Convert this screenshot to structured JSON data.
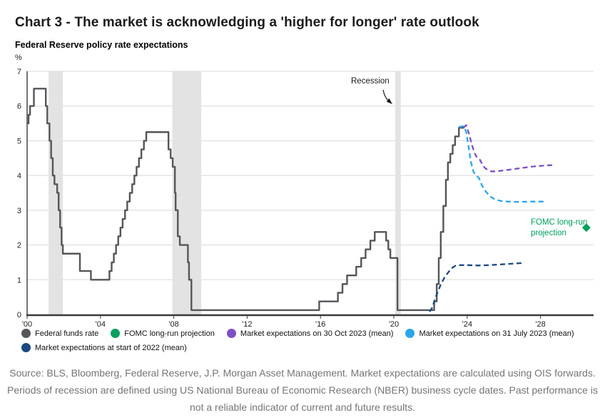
{
  "header": {
    "title": "Chart 3 - The market is acknowledging a 'higher for longer' rate outlook"
  },
  "chart_data": {
    "type": "line",
    "title": "Federal Reserve policy rate expectations",
    "ylabel": "%",
    "ylim": [
      0,
      7
    ],
    "xlim": [
      2000,
      2030.9
    ],
    "grid": true,
    "y_ticks": [
      0,
      1,
      2,
      3,
      4,
      5,
      6,
      7
    ],
    "x_ticks": [
      {
        "year": 2000,
        "label": "'00"
      },
      {
        "year": 2004,
        "label": "'04"
      },
      {
        "year": 2008,
        "label": "'08"
      },
      {
        "year": 2012,
        "label": "'12"
      },
      {
        "year": 2016,
        "label": "'16"
      },
      {
        "year": 2020,
        "label": "'20"
      },
      {
        "year": 2024,
        "label": "'24"
      },
      {
        "year": 2028,
        "label": "'28"
      }
    ],
    "colors": {
      "grid": "#d9d9d9",
      "band": "#e3e3e3",
      "axis": "#3a3a3a",
      "annotation": "#1a1a1a"
    },
    "recession_bands": [
      {
        "start": 2001.17,
        "end": 2001.95
      },
      {
        "start": 2007.92,
        "end": 2009.5
      },
      {
        "start": 2020.08,
        "end": 2020.38
      }
    ],
    "annotation": {
      "text": "Recession"
    },
    "fomc_label": "FOMC long-run projection",
    "series": [
      {
        "name": "Federal funds rate",
        "color": "#54565a",
        "style": "solid",
        "interp": "step",
        "width": 2.4,
        "points": [
          [
            2000.0,
            5.5
          ],
          [
            2000.08,
            5.75
          ],
          [
            2000.16,
            6.0
          ],
          [
            2000.37,
            6.5
          ],
          [
            2001.02,
            6.0
          ],
          [
            2001.1,
            5.5
          ],
          [
            2001.22,
            5.0
          ],
          [
            2001.31,
            4.5
          ],
          [
            2001.4,
            4.0
          ],
          [
            2001.49,
            3.75
          ],
          [
            2001.64,
            3.5
          ],
          [
            2001.72,
            3.0
          ],
          [
            2001.8,
            2.5
          ],
          [
            2001.88,
            2.0
          ],
          [
            2001.95,
            1.75
          ],
          [
            2002.88,
            1.25
          ],
          [
            2003.48,
            1.0
          ],
          [
            2004.49,
            1.25
          ],
          [
            2004.61,
            1.5
          ],
          [
            2004.73,
            1.75
          ],
          [
            2004.85,
            2.0
          ],
          [
            2004.97,
            2.25
          ],
          [
            2005.09,
            2.5
          ],
          [
            2005.21,
            2.75
          ],
          [
            2005.34,
            3.0
          ],
          [
            2005.46,
            3.25
          ],
          [
            2005.6,
            3.5
          ],
          [
            2005.73,
            3.75
          ],
          [
            2005.85,
            4.0
          ],
          [
            2005.97,
            4.25
          ],
          [
            2006.1,
            4.5
          ],
          [
            2006.23,
            4.75
          ],
          [
            2006.37,
            5.0
          ],
          [
            2006.5,
            5.25
          ],
          [
            2007.71,
            4.75
          ],
          [
            2007.83,
            4.5
          ],
          [
            2007.94,
            4.25
          ],
          [
            2008.06,
            3.5
          ],
          [
            2008.1,
            3.0
          ],
          [
            2008.22,
            2.25
          ],
          [
            2008.33,
            2.0
          ],
          [
            2008.77,
            1.5
          ],
          [
            2008.83,
            1.0
          ],
          [
            2008.96,
            0.125
          ],
          [
            2015.93,
            0.375
          ],
          [
            2016.95,
            0.625
          ],
          [
            2017.2,
            0.875
          ],
          [
            2017.45,
            1.125
          ],
          [
            2017.95,
            1.375
          ],
          [
            2018.22,
            1.625
          ],
          [
            2018.46,
            1.875
          ],
          [
            2018.72,
            2.125
          ],
          [
            2018.96,
            2.375
          ],
          [
            2019.58,
            2.125
          ],
          [
            2019.7,
            1.875
          ],
          [
            2019.81,
            1.625
          ],
          [
            2020.2,
            0.125
          ],
          [
            2022.2,
            0.375
          ],
          [
            2022.34,
            0.875
          ],
          [
            2022.45,
            1.625
          ],
          [
            2022.56,
            2.375
          ],
          [
            2022.7,
            3.125
          ],
          [
            2022.84,
            3.875
          ],
          [
            2022.95,
            4.375
          ],
          [
            2023.08,
            4.625
          ],
          [
            2023.21,
            4.875
          ],
          [
            2023.34,
            5.125
          ],
          [
            2023.55,
            5.375
          ],
          [
            2023.85,
            5.375
          ]
        ]
      },
      {
        "name": "Market expectations on 30 Oct 2023 (mean)",
        "color": "#7d4fc4",
        "style": "dashed",
        "interp": "linear",
        "width": 2.3,
        "points": [
          [
            2023.8,
            5.38
          ],
          [
            2023.95,
            5.45
          ],
          [
            2024.1,
            5.2
          ],
          [
            2024.25,
            4.9
          ],
          [
            2024.4,
            4.65
          ],
          [
            2024.55,
            4.5
          ],
          [
            2024.7,
            4.45
          ],
          [
            2024.85,
            4.3
          ],
          [
            2025.0,
            4.2
          ],
          [
            2025.3,
            4.12
          ],
          [
            2025.6,
            4.12
          ],
          [
            2026.0,
            4.15
          ],
          [
            2026.5,
            4.18
          ],
          [
            2027.0,
            4.22
          ],
          [
            2027.6,
            4.26
          ],
          [
            2028.3,
            4.29
          ],
          [
            2028.7,
            4.3
          ]
        ]
      },
      {
        "name": "Market expectations on 31 July 2023 (mean)",
        "color": "#2aa6e9",
        "style": "dashed",
        "interp": "linear",
        "width": 2.3,
        "points": [
          [
            2023.55,
            5.4
          ],
          [
            2023.82,
            5.42
          ],
          [
            2023.95,
            5.25
          ],
          [
            2024.1,
            4.75
          ],
          [
            2024.2,
            4.4
          ],
          [
            2024.35,
            4.1
          ],
          [
            2024.5,
            4.0
          ],
          [
            2024.65,
            3.92
          ],
          [
            2024.8,
            3.72
          ],
          [
            2025.0,
            3.55
          ],
          [
            2025.25,
            3.4
          ],
          [
            2025.5,
            3.32
          ],
          [
            2025.8,
            3.27
          ],
          [
            2026.2,
            3.25
          ],
          [
            2026.8,
            3.24
          ],
          [
            2027.5,
            3.25
          ],
          [
            2028.2,
            3.25
          ]
        ]
      },
      {
        "name": "Market expectations at start of 2022 (mean)",
        "color": "#1b4a82",
        "style": "dashed",
        "interp": "linear",
        "width": 2.3,
        "points": [
          [
            2021.95,
            0.08
          ],
          [
            2022.1,
            0.2
          ],
          [
            2022.25,
            0.45
          ],
          [
            2022.4,
            0.65
          ],
          [
            2022.55,
            0.85
          ],
          [
            2022.75,
            1.05
          ],
          [
            2022.95,
            1.2
          ],
          [
            2023.15,
            1.33
          ],
          [
            2023.35,
            1.4
          ],
          [
            2023.6,
            1.42
          ],
          [
            2024.0,
            1.42
          ],
          [
            2024.6,
            1.41
          ],
          [
            2025.2,
            1.42
          ],
          [
            2025.8,
            1.44
          ],
          [
            2026.4,
            1.46
          ],
          [
            2027.0,
            1.48
          ]
        ]
      },
      {
        "name": "FOMC long-run projection",
        "color": "#00a05e",
        "style": "marker",
        "marker": "diamond",
        "points": [
          [
            2030.5,
            2.5
          ]
        ]
      }
    ]
  },
  "legend": {
    "items": [
      {
        "label": "Federal funds rate",
        "color": "#54565a"
      },
      {
        "label": "FOMC long-run projection",
        "color": "#00a05e"
      },
      {
        "label": "Market expectations on 30 Oct 2023 (mean)",
        "color": "#7d4fc4"
      },
      {
        "label": "Market expectations on 31 July 2023 (mean)",
        "color": "#2aa6e9"
      },
      {
        "label": "Market expectations at start of 2022 (mean)",
        "color": "#1b4a82"
      }
    ]
  },
  "footer": {
    "source": "Source: BLS, Bloomberg, Federal Reserve, J.P. Morgan Asset Management. Market expectations are calculated using OIS forwards. Periods of recession are defined using US National Bureau of Economic Research (NBER) business cycle dates. Past performance is not a reliable indicator of current and future results."
  }
}
